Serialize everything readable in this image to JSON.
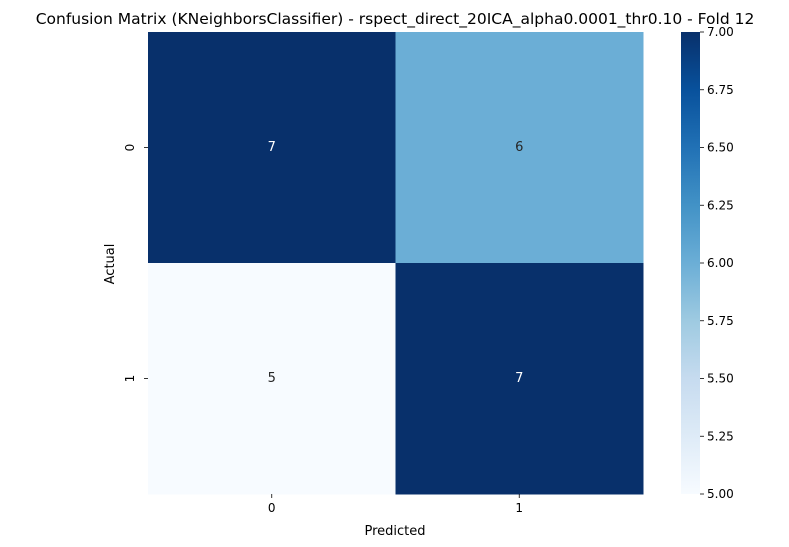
{
  "chart_data": {
    "type": "heatmap",
    "title": "Confusion Matrix (KNeighborsClassifier) - rspect_direct_20ICA_alpha0.0001_thr0.10 - Fold 12",
    "xlabel": "Predicted",
    "ylabel": "Actual",
    "x_categories": [
      "0",
      "1"
    ],
    "y_categories": [
      "0",
      "1"
    ],
    "values": [
      [
        7,
        6
      ],
      [
        5,
        7
      ]
    ],
    "colormap": "Blues",
    "colorbar": {
      "vmin": 5.0,
      "vmax": 7.0,
      "ticks": [
        "5.00",
        "5.25",
        "5.50",
        "5.75",
        "6.00",
        "6.25",
        "6.50",
        "6.75",
        "7.00"
      ]
    },
    "grid": false,
    "annotations": true
  }
}
